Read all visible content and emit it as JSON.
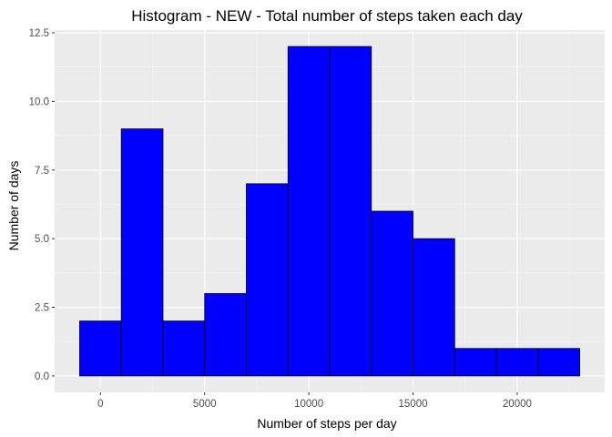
{
  "chart_data": {
    "type": "bar",
    "title": "Histogram - NEW - Total number of steps taken each day",
    "xlabel": "Number of steps per day",
    "ylabel": "Number of days",
    "bin_width": 2000,
    "bins": [
      {
        "start": -1000,
        "end": 1000,
        "count": 2
      },
      {
        "start": 1000,
        "end": 3000,
        "count": 9
      },
      {
        "start": 3000,
        "end": 5000,
        "count": 2
      },
      {
        "start": 5000,
        "end": 7000,
        "count": 3
      },
      {
        "start": 7000,
        "end": 9000,
        "count": 7
      },
      {
        "start": 9000,
        "end": 11000,
        "count": 12
      },
      {
        "start": 11000,
        "end": 13000,
        "count": 12
      },
      {
        "start": 13000,
        "end": 15000,
        "count": 6
      },
      {
        "start": 15000,
        "end": 17000,
        "count": 5
      },
      {
        "start": 17000,
        "end": 19000,
        "count": 1
      },
      {
        "start": 19000,
        "end": 21000,
        "count": 1
      },
      {
        "start": 21000,
        "end": 23000,
        "count": 1
      }
    ],
    "xlim": [
      -2200,
      24200
    ],
    "ylim": [
      -0.6,
      12.6
    ],
    "x_ticks": [
      0,
      5000,
      10000,
      15000,
      20000
    ],
    "x_tick_labels": [
      "0",
      "5000",
      "10000",
      "15000",
      "20000"
    ],
    "y_ticks": [
      0,
      2.5,
      5,
      7.5,
      10,
      12.5
    ],
    "y_tick_labels": [
      "0.0",
      "2.5",
      "5.0",
      "7.5",
      "10.0",
      "12.5"
    ],
    "grid": true,
    "colors": {
      "bar_fill": "#0000ff",
      "bar_stroke": "#000000",
      "panel_background": "#ebebeb",
      "grid_major": "#ffffff",
      "grid_minor": "#f5f5f5",
      "tick_color": "#333333"
    }
  }
}
